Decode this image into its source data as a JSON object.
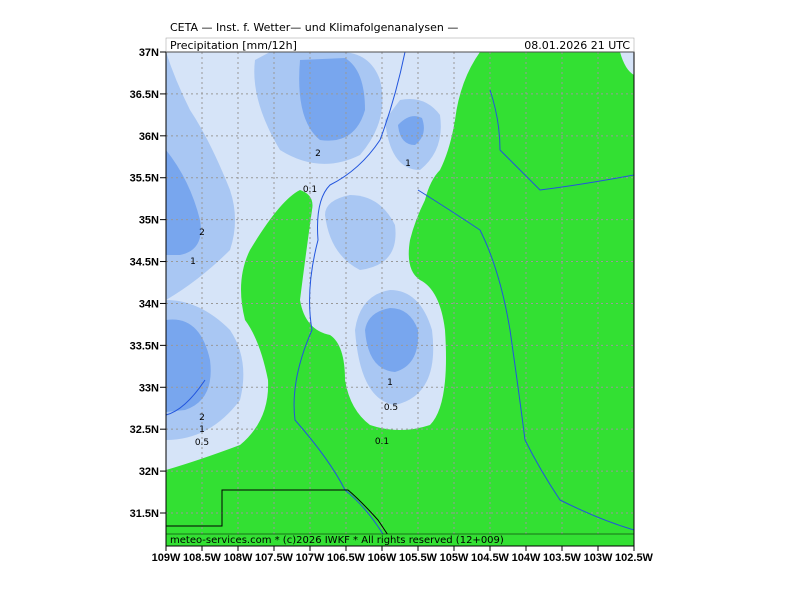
{
  "header": {
    "title": "CETA — Inst. f. Wetter— und Klimafolgenanalysen —",
    "field": "Precipitation [mm/12h]",
    "date": "08.01.2026 21 UTC"
  },
  "footer": "meteo-services.com * (c)2026 IWKF * All rights reserved (12+009)",
  "lat_labels": [
    "37N",
    "36.5N",
    "36N",
    "35.5N",
    "35N",
    "34.5N",
    "34N",
    "33.5N",
    "33N",
    "32.5N",
    "32N",
    "31.5N"
  ],
  "lon_labels": [
    "109W",
    "108.5W",
    "108W",
    "107.5W",
    "107W",
    "106.5W",
    "106W",
    "105.5W",
    "105W",
    "104.5W",
    "104W",
    "103.5W",
    "103W",
    "102.5W"
  ],
  "contour_labels": [
    "2",
    "1",
    "0.1",
    "2",
    "1",
    "1",
    "0.5",
    "2",
    "1",
    "0.5",
    "0.1"
  ]
}
